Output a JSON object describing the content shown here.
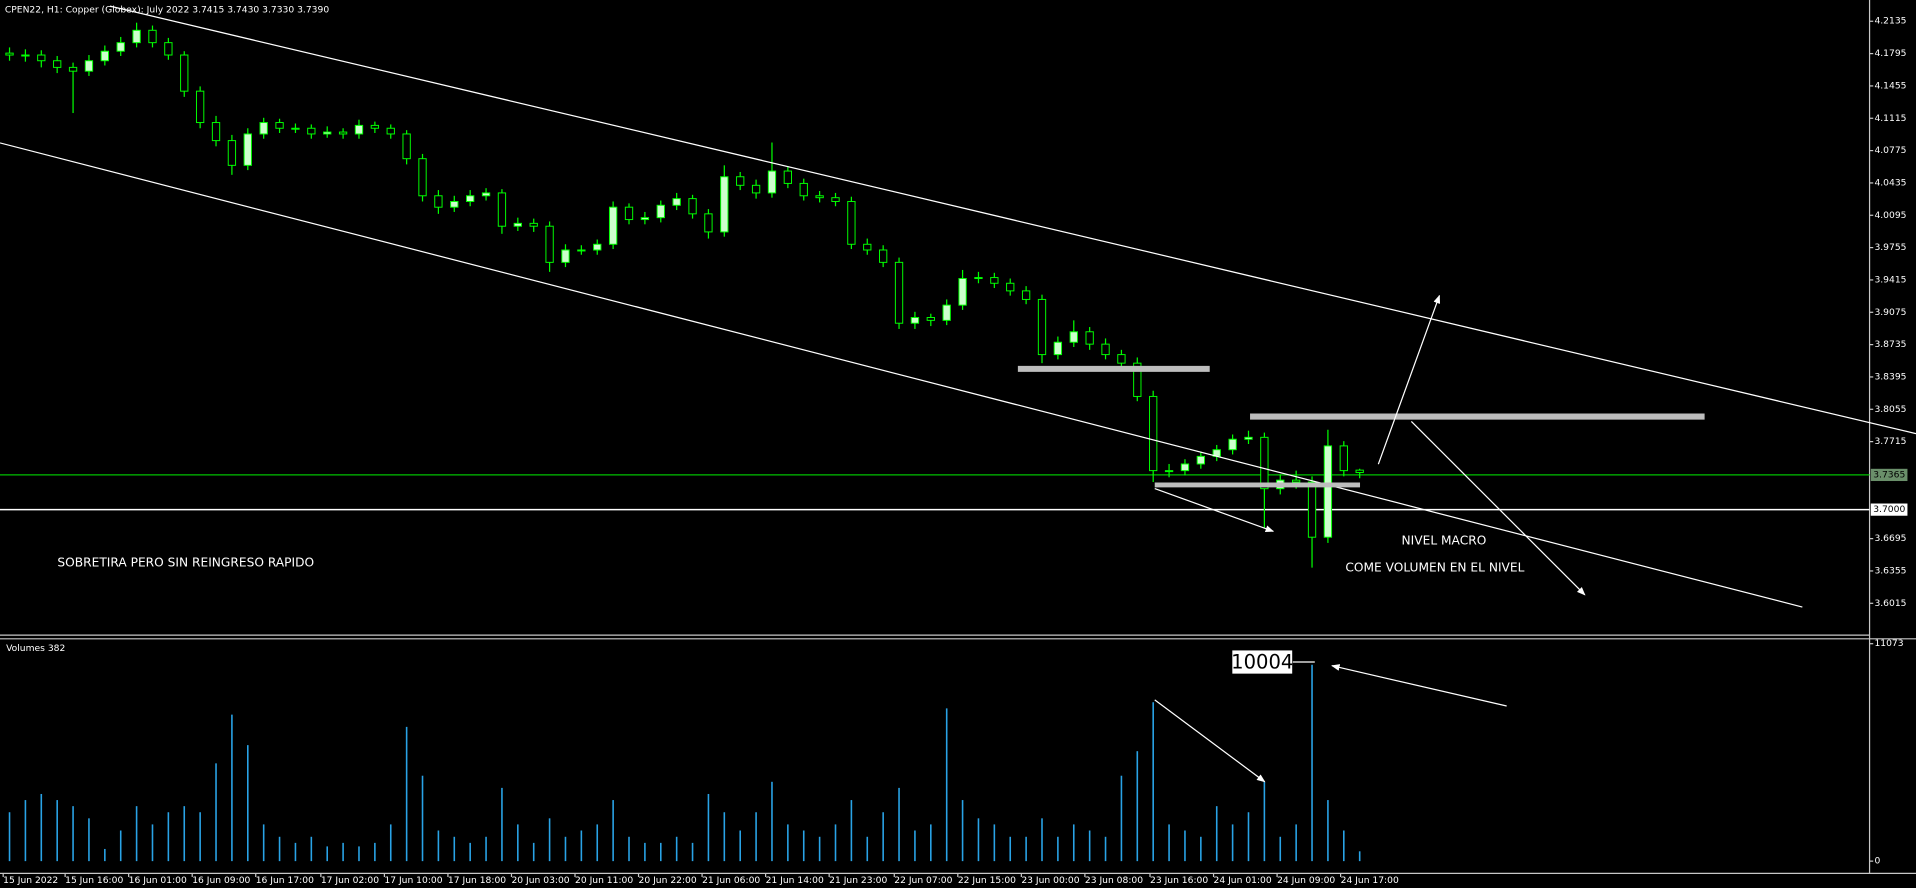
{
  "chart_data": {
    "type": "candlestick",
    "title": "CPEN22, H1:  Copper (Globex): July 2022  3.7415 3.7430 3.7330 3.7390",
    "xlim": [
      -0.6,
      117.1
    ],
    "xticks": [
      {
        "value": -0.4,
        "label": "15 Jun 2022"
      },
      {
        "value": 3.5,
        "label": "15 Jun 16:00"
      },
      {
        "value": 7.5,
        "label": "16 Jun 01:00"
      },
      {
        "value": 11.5,
        "label": "16 Jun 09:00"
      },
      {
        "value": 15.5,
        "label": "16 Jun 17:00"
      },
      {
        "value": 19.6,
        "label": "17 Jun 02:00"
      },
      {
        "value": 23.6,
        "label": "17 Jun 10:00"
      },
      {
        "value": 27.6,
        "label": "17 Jun 18:00"
      },
      {
        "value": 31.6,
        "label": "20 Jun 03:00"
      },
      {
        "value": 35.6,
        "label": "20 Jun 11:00"
      },
      {
        "value": 39.6,
        "label": "20 Jun 22:00"
      },
      {
        "value": 43.6,
        "label": "21 Jun 06:00"
      },
      {
        "value": 47.6,
        "label": "21 Jun 14:00"
      },
      {
        "value": 51.6,
        "label": "21 Jun 23:00"
      },
      {
        "value": 55.7,
        "label": "22 Jun 07:00"
      },
      {
        "value": 59.7,
        "label": "22 Jun 15:00"
      },
      {
        "value": 63.7,
        "label": "23 Jun 00:00"
      },
      {
        "value": 67.7,
        "label": "23 Jun 08:00"
      },
      {
        "value": 71.8,
        "label": "23 Jun 16:00"
      },
      {
        "value": 75.8,
        "label": "24 Jun 01:00"
      },
      {
        "value": 79.8,
        "label": "24 Jun 09:00"
      },
      {
        "value": 83.8,
        "label": "24 Jun 17:00"
      }
    ],
    "ylim": [
      3.568,
      4.232
    ],
    "yticks": [
      4.2135,
      4.1795,
      4.1455,
      4.1115,
      4.0775,
      4.0435,
      4.0095,
      3.9755,
      3.9415,
      3.9075,
      3.8735,
      3.8395,
      3.8055,
      3.7715,
      3.6695,
      3.6355,
      3.6015
    ],
    "bid": 3.7365,
    "bid_color": "#00c000",
    "level": {
      "value": 3.7,
      "label": "3.7000"
    },
    "level_color": "#ffffff",
    "up_color": "#ccffcc",
    "down_color": "#000000",
    "wick_color": "#00ff00",
    "open": [
      4.18,
      4.178,
      4.178,
      4.172,
      4.165,
      4.161,
      4.172,
      4.182,
      4.191,
      4.204,
      4.191,
      4.178,
      4.14,
      4.107,
      4.088,
      4.062,
      4.095,
      4.107,
      4.101,
      4.101,
      4.095,
      4.097,
      4.095,
      4.104,
      4.101,
      4.095,
      4.069,
      4.03,
      4.018,
      4.024,
      4.03,
      4.033,
      3.998,
      4.001,
      3.998,
      3.96,
      3.973,
      3.973,
      3.979,
      4.018,
      4.005,
      4.007,
      4.02,
      4.027,
      4.011,
      3.992,
      4.05,
      4.041,
      4.033,
      4.056,
      4.043,
      4.03,
      4.028,
      4.024,
      3.979,
      3.973,
      3.96,
      3.896,
      3.902,
      3.899,
      3.915,
      3.943,
      3.944,
      3.938,
      3.93,
      3.921,
      3.863,
      3.876,
      3.887,
      3.874,
      3.863,
      3.854,
      3.819,
      3.741,
      3.741,
      3.748,
      3.756,
      3.763,
      3.774,
      3.776,
      3.722,
      3.731,
      3.729,
      3.671,
      3.767,
      3.7415
    ],
    "high": [
      4.186,
      4.184,
      4.183,
      4.177,
      4.17,
      4.178,
      4.188,
      4.197,
      4.212,
      4.209,
      4.196,
      4.182,
      4.145,
      4.114,
      4.094,
      4.101,
      4.112,
      4.111,
      4.106,
      4.105,
      4.103,
      4.101,
      4.11,
      4.108,
      4.105,
      4.099,
      4.074,
      4.036,
      4.03,
      4.036,
      4.038,
      4.037,
      4.007,
      4.006,
      4.003,
      3.979,
      3.978,
      3.984,
      4.024,
      4.022,
      4.013,
      4.025,
      4.033,
      4.031,
      4.016,
      4.062,
      4.055,
      4.047,
      4.086,
      4.061,
      4.048,
      4.035,
      4.033,
      4.029,
      3.985,
      3.978,
      3.965,
      3.908,
      3.906,
      3.921,
      3.952,
      3.95,
      3.949,
      3.943,
      3.935,
      3.926,
      3.882,
      3.899,
      3.892,
      3.88,
      3.868,
      3.86,
      3.825,
      3.748,
      3.753,
      3.761,
      3.768,
      3.779,
      3.783,
      3.781,
      3.737,
      3.741,
      3.735,
      3.784,
      3.772,
      3.743
    ],
    "low": [
      4.172,
      4.171,
      4.165,
      4.159,
      4.117,
      4.156,
      4.167,
      4.177,
      4.186,
      4.186,
      4.173,
      4.134,
      4.101,
      4.082,
      4.052,
      4.057,
      4.09,
      4.096,
      4.096,
      4.09,
      4.091,
      4.09,
      4.09,
      4.096,
      4.09,
      4.063,
      4.024,
      4.011,
      4.013,
      4.019,
      4.025,
      3.99,
      3.993,
      3.992,
      3.95,
      3.955,
      3.968,
      3.968,
      3.974,
      4.0,
      4.0,
      4.002,
      4.015,
      4.006,
      3.985,
      3.987,
      4.036,
      4.027,
      4.028,
      4.038,
      4.025,
      4.023,
      4.019,
      3.974,
      3.968,
      3.955,
      3.89,
      3.89,
      3.893,
      3.894,
      3.91,
      3.938,
      3.933,
      3.925,
      3.916,
      3.854,
      3.858,
      3.871,
      3.868,
      3.858,
      3.849,
      3.814,
      3.729,
      3.734,
      3.736,
      3.743,
      3.751,
      3.758,
      3.769,
      3.681,
      3.716,
      3.722,
      3.639,
      3.665,
      3.735,
      3.733
    ],
    "close": [
      4.178,
      4.178,
      4.172,
      4.165,
      4.161,
      4.172,
      4.182,
      4.191,
      4.204,
      4.191,
      4.178,
      4.14,
      4.107,
      4.088,
      4.062,
      4.095,
      4.107,
      4.101,
      4.101,
      4.095,
      4.097,
      4.095,
      4.104,
      4.101,
      4.095,
      4.069,
      4.03,
      4.018,
      4.024,
      4.03,
      4.033,
      3.998,
      4.001,
      3.998,
      3.96,
      3.973,
      3.973,
      3.979,
      4.018,
      4.005,
      4.007,
      4.02,
      4.027,
      4.011,
      3.992,
      4.05,
      4.041,
      4.033,
      4.056,
      4.043,
      4.03,
      4.028,
      4.024,
      3.979,
      3.973,
      3.96,
      3.896,
      3.902,
      3.899,
      3.915,
      3.943,
      3.944,
      3.938,
      3.93,
      3.921,
      3.863,
      3.876,
      3.887,
      3.874,
      3.863,
      3.854,
      3.819,
      3.741,
      3.741,
      3.748,
      3.756,
      3.763,
      3.774,
      3.776,
      3.722,
      3.731,
      3.729,
      3.671,
      3.767,
      3.741,
      3.739
    ],
    "volume_title": "Volumes 382",
    "volume_color": "#29a3e6",
    "volume_ylim": [
      0,
      11073
    ],
    "volume_yticks": [
      11073,
      0
    ],
    "volume": [
      2490,
      3110,
      3420,
      3110,
      2800,
      2180,
      620,
      1560,
      2800,
      1870,
      2490,
      2800,
      2490,
      4980,
      7460,
      5910,
      1870,
      1240,
      930,
      1240,
      750,
      930,
      750,
      930,
      1870,
      6840,
      4350,
      1560,
      1240,
      930,
      1240,
      3730,
      1870,
      930,
      2180,
      1240,
      1560,
      1870,
      3110,
      1240,
      930,
      930,
      1240,
      930,
      3420,
      2490,
      1560,
      2490,
      4040,
      1870,
      1560,
      1240,
      1870,
      3110,
      1240,
      2490,
      3730,
      1560,
      1870,
      7780,
      3110,
      2180,
      1870,
      1240,
      1240,
      2180,
      1240,
      1870,
      1560,
      1240,
      4350,
      5600,
      8090,
      1870,
      1560,
      1240,
      2800,
      1870,
      2490,
      4040,
      1240,
      1870,
      10004,
      3110,
      1560,
      500
    ],
    "annotations": [
      "SOBRETIRA PERO SIN REINGRESO RAPIDO",
      "NIVEL MACRO",
      "COME VOLUMEN EN EL NIVEL"
    ]
  }
}
